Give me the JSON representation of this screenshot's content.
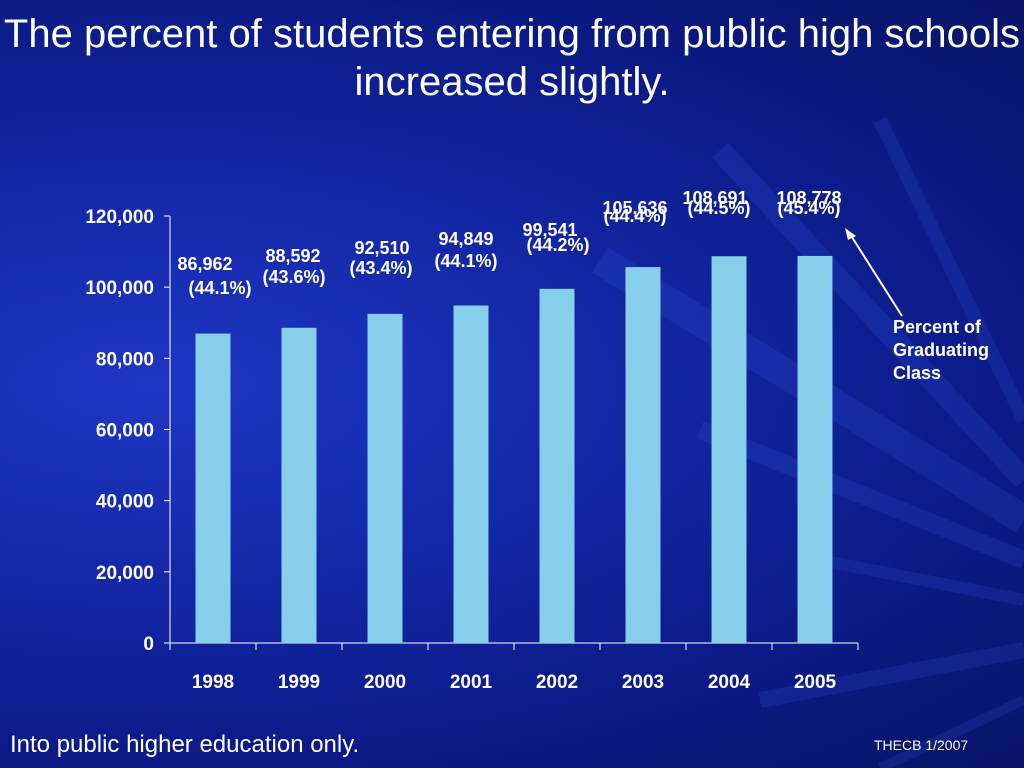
{
  "slide": {
    "title": "The percent of students entering from public high schools increased slightly.",
    "footnote": "Into public higher education only.",
    "source": "THECB 1/2007",
    "callout": "Percent of Graduating Class"
  },
  "colors": {
    "background": "#0d1c8f",
    "bar": "#87ceeb",
    "text": "#ffffff"
  },
  "chart_data": {
    "type": "bar",
    "categories": [
      "1998",
      "1999",
      "2000",
      "2001",
      "2002",
      "2003",
      "2004",
      "2005"
    ],
    "values": [
      86962,
      88592,
      92510,
      94849,
      99541,
      105636,
      108691,
      108778
    ],
    "data_labels": [
      "86,962",
      "88,592",
      "92,510",
      "94,849",
      "99,541",
      "105,636",
      "108,691",
      "108,778"
    ],
    "percent_labels": [
      "(44.1%)",
      "(43.6%)",
      "(43.4%)",
      "(44.1%)",
      "(44.2%)",
      "(44.4%)",
      "(44.5%)",
      "(45.4%)"
    ],
    "yticks": [
      0,
      20000,
      40000,
      60000,
      80000,
      100000,
      120000
    ],
    "ytick_labels": [
      "0",
      "20,000",
      "40,000",
      "60,000",
      "80,000",
      "100,000",
      "120,000"
    ],
    "ylim": [
      0,
      120000
    ],
    "grid": false,
    "legend": "none"
  }
}
